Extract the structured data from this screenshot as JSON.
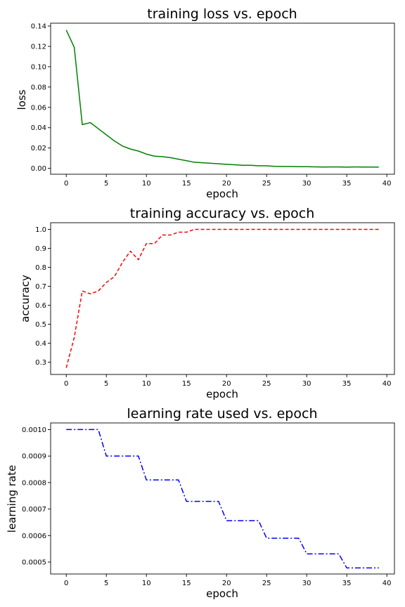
{
  "chart_data": [
    {
      "type": "line",
      "title": "training loss vs. epoch",
      "xlabel": "epoch",
      "ylabel": "loss",
      "xlim": [
        -1.95,
        40.95
      ],
      "ylim": [
        -0.0058,
        0.1428
      ],
      "xticks": [
        0,
        5,
        10,
        15,
        20,
        25,
        30,
        35,
        40
      ],
      "yticks": [
        0.0,
        0.02,
        0.04,
        0.06,
        0.08,
        0.1,
        0.12,
        0.14
      ],
      "ytick_labels": [
        "0.00",
        "0.02",
        "0.04",
        "0.06",
        "0.08",
        "0.10",
        "0.12",
        "0.14"
      ],
      "grid": false,
      "series": [
        {
          "color": "#008000",
          "linestyle": "solid",
          "x": [
            0,
            1,
            2,
            3,
            4,
            5,
            6,
            7,
            8,
            9,
            10,
            11,
            12,
            13,
            14,
            15,
            16,
            17,
            18,
            19,
            20,
            21,
            22,
            23,
            24,
            25,
            26,
            27,
            28,
            29,
            30,
            31,
            32,
            33,
            34,
            35,
            36,
            37,
            38,
            39
          ],
          "values": [
            0.136,
            0.119,
            0.043,
            0.045,
            0.039,
            0.033,
            0.027,
            0.022,
            0.019,
            0.017,
            0.014,
            0.012,
            0.0115,
            0.0105,
            0.009,
            0.0075,
            0.006,
            0.0055,
            0.005,
            0.0045,
            0.004,
            0.0035,
            0.003,
            0.003,
            0.0025,
            0.0025,
            0.002,
            0.0018,
            0.0018,
            0.0016,
            0.0016,
            0.0015,
            0.0013,
            0.0014,
            0.0014,
            0.0012,
            0.0014,
            0.0013,
            0.0013,
            0.0012
          ]
        }
      ]
    },
    {
      "type": "line",
      "title": "training accuracy vs. epoch",
      "xlabel": "epoch",
      "ylabel": "accuracy",
      "xlim": [
        -1.95,
        40.95
      ],
      "ylim": [
        0.235,
        1.035
      ],
      "xticks": [
        0,
        5,
        10,
        15,
        20,
        25,
        30,
        35,
        40
      ],
      "yticks": [
        0.3,
        0.4,
        0.5,
        0.6,
        0.7,
        0.8,
        0.9,
        1.0
      ],
      "ytick_labels": [
        "0.3",
        "0.4",
        "0.5",
        "0.6",
        "0.7",
        "0.8",
        "0.9",
        "1.0"
      ],
      "grid": false,
      "series": [
        {
          "color": "#ff0000",
          "linestyle": "dashed",
          "x": [
            0,
            1,
            2,
            3,
            4,
            5,
            6,
            7,
            8,
            9,
            10,
            11,
            12,
            13,
            14,
            15,
            16,
            17,
            18,
            19,
            20,
            21,
            22,
            23,
            24,
            25,
            26,
            27,
            28,
            29,
            30,
            31,
            32,
            33,
            34,
            35,
            36,
            37,
            38,
            39
          ],
          "values": [
            0.27,
            0.43,
            0.675,
            0.66,
            0.675,
            0.72,
            0.75,
            0.825,
            0.885,
            0.84,
            0.925,
            0.925,
            0.97,
            0.97,
            0.985,
            0.985,
            1.0,
            1.0,
            1.0,
            1.0,
            1.0,
            1.0,
            1.0,
            1.0,
            1.0,
            1.0,
            1.0,
            1.0,
            1.0,
            1.0,
            1.0,
            1.0,
            1.0,
            1.0,
            1.0,
            1.0,
            1.0,
            1.0,
            1.0,
            1.0
          ]
        }
      ]
    },
    {
      "type": "line",
      "title": "learning rate used vs. epoch",
      "xlabel": "epoch",
      "ylabel": "learning rate",
      "xlim": [
        -1.95,
        40.95
      ],
      "ylim": [
        0.000455,
        0.001025
      ],
      "xticks": [
        0,
        5,
        10,
        15,
        20,
        25,
        30,
        35,
        40
      ],
      "yticks": [
        0.0005,
        0.0006,
        0.0007,
        0.0008,
        0.0009,
        0.001
      ],
      "ytick_labels": [
        "0.0005",
        "0.0006",
        "0.0007",
        "0.0008",
        "0.0009",
        "0.0010"
      ],
      "grid": false,
      "series": [
        {
          "color": "#0000ff",
          "linestyle": "dashdot",
          "x": [
            0,
            1,
            2,
            3,
            4,
            5,
            6,
            7,
            8,
            9,
            10,
            11,
            12,
            13,
            14,
            15,
            16,
            17,
            18,
            19,
            20,
            21,
            22,
            23,
            24,
            25,
            26,
            27,
            28,
            29,
            30,
            31,
            32,
            33,
            34,
            35,
            36,
            37,
            38,
            39
          ],
          "values": [
            0.001,
            0.001,
            0.001,
            0.001,
            0.001,
            0.0009,
            0.0009,
            0.0009,
            0.0009,
            0.0009,
            0.00081,
            0.00081,
            0.00081,
            0.00081,
            0.00081,
            0.000729,
            0.000729,
            0.000729,
            0.000729,
            0.000729,
            0.000656,
            0.000656,
            0.000656,
            0.000656,
            0.000656,
            0.00059,
            0.00059,
            0.00059,
            0.00059,
            0.00059,
            0.000531,
            0.000531,
            0.000531,
            0.000531,
            0.000531,
            0.000478,
            0.000478,
            0.000478,
            0.000478,
            0.000478
          ]
        }
      ]
    }
  ]
}
